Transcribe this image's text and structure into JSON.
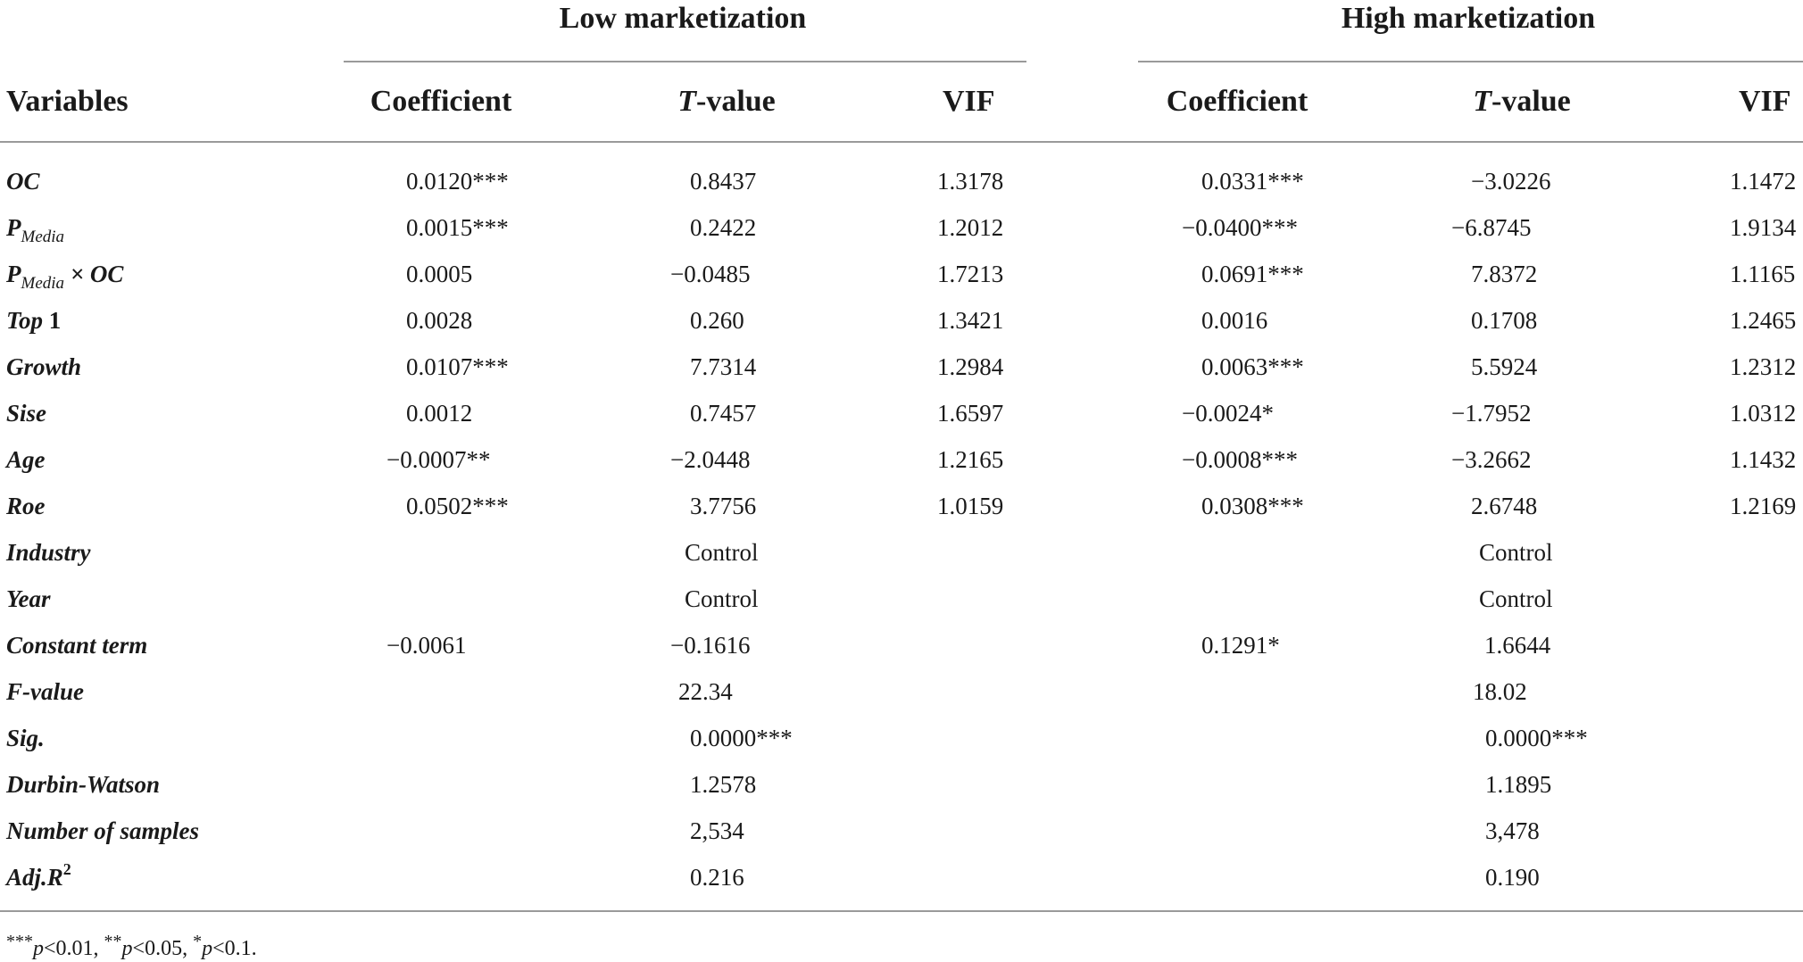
{
  "groups": {
    "low": "Low marketization",
    "high": "High marketization"
  },
  "headers": {
    "variables": "Variables",
    "low": {
      "coef": "Coefficient",
      "t_prefix": "T",
      "t_suffix": "-value",
      "vif": "VIF"
    },
    "high": {
      "coef": "Coefficient",
      "t_prefix": "T",
      "t_suffix": "-value",
      "vif": "VIF"
    }
  },
  "label_parts": {
    "p": "P",
    "media": "Media",
    "times_oc": " × OC",
    "top": "Top",
    "top_num": " 1",
    "adj": "Adj.R",
    "sq": "2"
  },
  "rows": [
    {
      "label": "OC",
      "lc": "0.0120***",
      "lt": "0.8437",
      "lv": "1.3178",
      "hc": "0.0331***",
      "ht": "−3.0226",
      "hv": "1.1472"
    },
    {
      "label": "P_Media",
      "lc": "0.0015***",
      "lt": "0.2422",
      "lv": "1.2012",
      "hc": "−0.0400***",
      "ht": "−6.8745",
      "hv": "1.9134"
    },
    {
      "label": "P_Media × OC",
      "lc": "0.0005",
      "lt": "−0.0485",
      "lv": "1.7213",
      "hc": "0.0691***",
      "ht": "7.8372",
      "hv": "1.1165"
    },
    {
      "label": "Top 1",
      "lc": "0.0028",
      "lt": "0.260",
      "lv": "1.3421",
      "hc": "0.0016",
      "ht": "0.1708",
      "hv": "1.2465"
    },
    {
      "label": "Growth",
      "lc": "0.0107***",
      "lt": "7.7314",
      "lv": "1.2984",
      "hc": "0.0063***",
      "ht": "5.5924",
      "hv": "1.2312"
    },
    {
      "label": "Sise",
      "lc": "0.0012",
      "lt": "0.7457",
      "lv": "1.6597",
      "hc": "−0.0024*",
      "ht": "−1.7952",
      "hv": "1.0312"
    },
    {
      "label": "Age",
      "lc": "−0.0007**",
      "lt": "−2.0448",
      "lv": "1.2165",
      "hc": "−0.0008***",
      "ht": "−3.2662",
      "hv": "1.1432"
    },
    {
      "label": "Roe",
      "lc": "0.0502***",
      "lt": "3.7756",
      "lv": "1.0159",
      "hc": "0.0308***",
      "ht": "2.6748",
      "hv": "1.2169"
    },
    {
      "label": "Industry",
      "lc": "",
      "lt": "Control",
      "lv": "",
      "hc": "",
      "ht": "Control",
      "hv": ""
    },
    {
      "label": "Year",
      "lc": "",
      "lt": "Control",
      "lv": "",
      "hc": "",
      "ht": "Control",
      "hv": ""
    },
    {
      "label": "Constant term",
      "lc": "−0.0061",
      "lt": "−0.1616",
      "lv": "",
      "hc": "0.1291*",
      "ht": "1.6644",
      "hv": ""
    },
    {
      "label": "F-value",
      "lc": "",
      "lt": "22.34",
      "lv": "",
      "hc": "",
      "ht": "18.02",
      "hv": ""
    },
    {
      "label": "Sig.",
      "lc": "",
      "lt": "0.0000***",
      "lv": "",
      "hc": "",
      "ht": "0.0000***",
      "hv": ""
    },
    {
      "label": "Durbin-Watson",
      "lc": "",
      "lt": "1.2578",
      "lv": "",
      "hc": "",
      "ht": "1.1895",
      "hv": ""
    },
    {
      "label": "Number of samples",
      "lc": "",
      "lt": "2,534",
      "lv": "",
      "hc": "",
      "ht": "3,478",
      "hv": ""
    },
    {
      "label": "Adj.R2",
      "lc": "",
      "lt": "0.216",
      "lv": "",
      "hc": "",
      "ht": "0.190",
      "hv": ""
    }
  ],
  "footnote": {
    "s1": "***",
    "p1": "p",
    "v1": "<0.01, ",
    "s2": "**",
    "p2": "p",
    "v2": "<0.05, ",
    "s3": "*",
    "p3": "p",
    "v3": "<0.1."
  }
}
